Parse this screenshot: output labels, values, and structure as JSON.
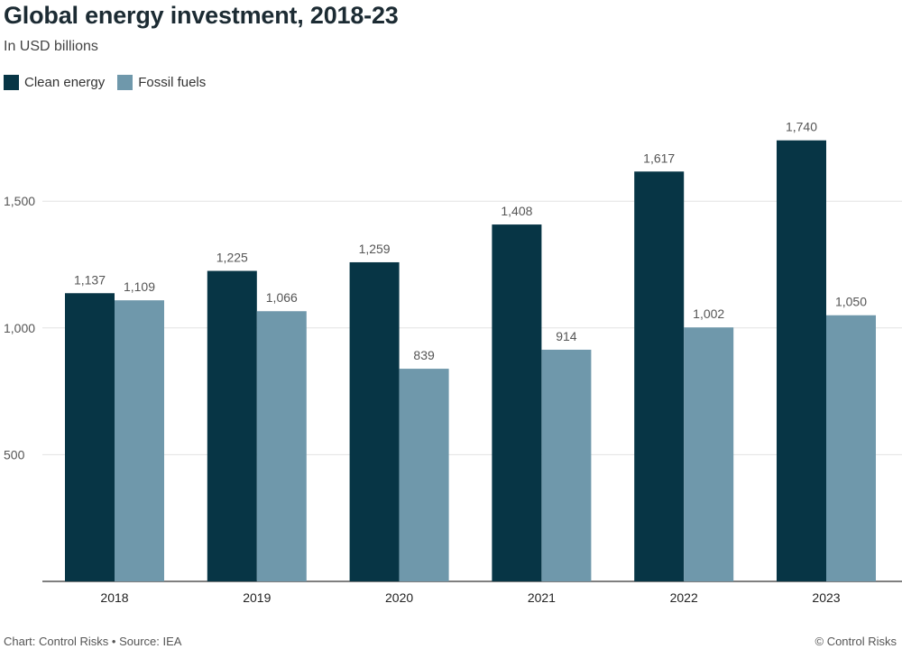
{
  "chart_data": {
    "type": "bar",
    "title": "Global energy investment, 2018-23",
    "subtitle": "In USD billions",
    "categories": [
      "2018",
      "2019",
      "2020",
      "2021",
      "2022",
      "2023"
    ],
    "series": [
      {
        "name": "Clean energy",
        "color": "#073545",
        "values": [
          1137,
          1225,
          1259,
          1408,
          1617,
          1740
        ],
        "labels": [
          "1,137",
          "1,225",
          "1,259",
          "1,408",
          "1,617",
          "1,740"
        ]
      },
      {
        "name": "Fossil fuels",
        "color": "#6f98ab",
        "values": [
          1109,
          1066,
          839,
          914,
          1002,
          1050
        ],
        "labels": [
          "1,109",
          "1,066",
          "839",
          "914",
          "1,002",
          "1,050"
        ]
      }
    ],
    "yticks": [
      500,
      1000,
      1500
    ],
    "ytick_labels": [
      "500",
      "1,000",
      "1,500"
    ],
    "ylim": [
      0,
      2000
    ],
    "grid": true,
    "legend_position": "top-left"
  },
  "footer": {
    "source": "Chart: Control Risks • Source: IEA",
    "copyright": "© Control Risks"
  }
}
